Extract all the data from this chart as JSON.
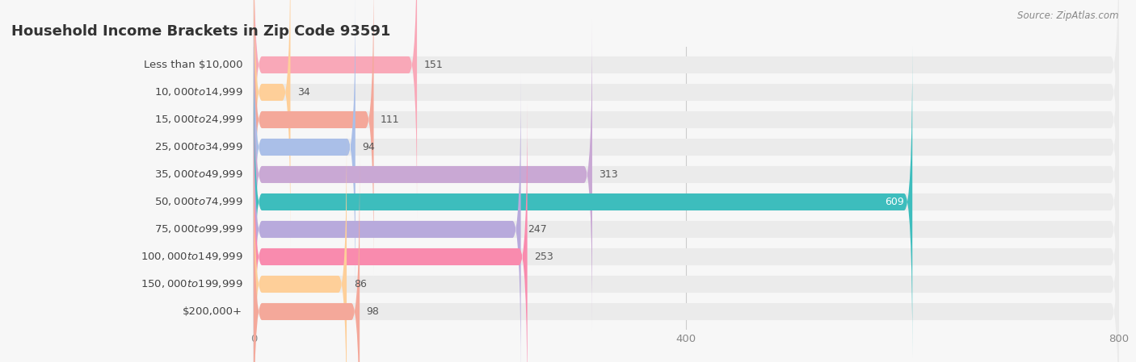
{
  "title": "Household Income Brackets in Zip Code 93591",
  "source": "Source: ZipAtlas.com",
  "categories": [
    "Less than $10,000",
    "$10,000 to $14,999",
    "$15,000 to $24,999",
    "$25,000 to $34,999",
    "$35,000 to $49,999",
    "$50,000 to $74,999",
    "$75,000 to $99,999",
    "$100,000 to $149,999",
    "$150,000 to $199,999",
    "$200,000+"
  ],
  "values": [
    151,
    34,
    111,
    94,
    313,
    609,
    247,
    253,
    86,
    98
  ],
  "bar_colors": [
    "#F9A8B8",
    "#FECF99",
    "#F4A89A",
    "#AABFE8",
    "#C9A8D4",
    "#3DBDBD",
    "#B8AADC",
    "#F98BAE",
    "#FECF99",
    "#F4A89A"
  ],
  "background_color": "#f7f7f7",
  "bar_bg_color": "#ebebeb",
  "title_fontsize": 13,
  "label_fontsize": 9.5,
  "value_fontsize": 9,
  "xmax": 800,
  "xticks": [
    0,
    400,
    800
  ]
}
